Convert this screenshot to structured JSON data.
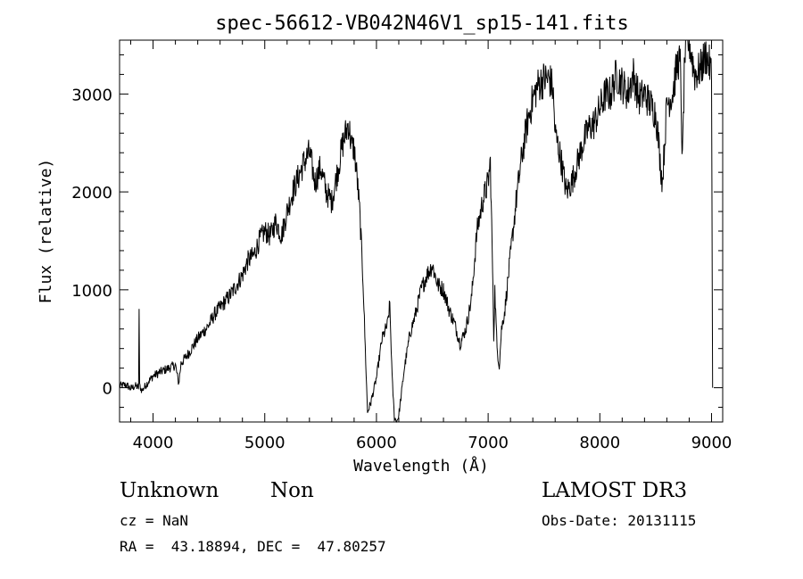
{
  "chart_data": {
    "type": "line",
    "title": "spec-56612-VB042N46V1_sp15-141.fits",
    "xlabel": "Wavelength (Å)",
    "ylabel": "Flux (relative)",
    "xlim": [
      3700,
      9100
    ],
    "ylim": [
      -350,
      3550
    ],
    "xticks": [
      4000,
      5000,
      6000,
      7000,
      8000,
      9000
    ],
    "yticks": [
      0,
      1000,
      2000,
      3000
    ],
    "xtick_labels": [
      "4000",
      "5000",
      "6000",
      "7000",
      "8000",
      "9000"
    ],
    "ytick_labels": [
      "0",
      "1000",
      "2000",
      "3000"
    ],
    "grid": false,
    "series": [
      {
        "name": "flux",
        "x": [
          3700,
          3760,
          3800,
          3840,
          3870,
          3875,
          3880,
          3900,
          3950,
          4000,
          4100,
          4200,
          4230,
          4250,
          4300,
          4400,
          4500,
          4550,
          4600,
          4700,
          4800,
          4850,
          4900,
          4950,
          5000,
          5050,
          5100,
          5150,
          5200,
          5250,
          5300,
          5350,
          5400,
          5450,
          5500,
          5550,
          5600,
          5650,
          5700,
          5750,
          5780,
          5800,
          5830,
          5850,
          5880,
          5900,
          5920,
          5950,
          6000,
          6050,
          6100,
          6120,
          6140,
          6160,
          6180,
          6200,
          6230,
          6250,
          6300,
          6350,
          6400,
          6450,
          6500,
          6550,
          6600,
          6650,
          6700,
          6750,
          6800,
          6850,
          6900,
          6950,
          7000,
          7020,
          7040,
          7050,
          7060,
          7080,
          7100,
          7120,
          7150,
          7200,
          7250,
          7300,
          7350,
          7400,
          7450,
          7500,
          7550,
          7580,
          7600,
          7620,
          7650,
          7700,
          7750,
          7800,
          7850,
          7900,
          7950,
          8000,
          8050,
          8100,
          8150,
          8200,
          8250,
          8300,
          8350,
          8400,
          8450,
          8500,
          8520,
          8540,
          8560,
          8600,
          8650,
          8700,
          8720,
          8740,
          8760,
          8800,
          8850,
          8900,
          8950,
          8980,
          9000,
          9010
        ],
        "y": [
          20,
          30,
          -10,
          20,
          0,
          800,
          20,
          -30,
          50,
          120,
          180,
          230,
          40,
          250,
          320,
          500,
          640,
          750,
          820,
          960,
          1150,
          1300,
          1350,
          1500,
          1600,
          1550,
          1700,
          1550,
          1800,
          2000,
          2150,
          2300,
          2400,
          2100,
          2250,
          2000,
          1900,
          2200,
          2500,
          2700,
          2450,
          2450,
          2100,
          1800,
          1100,
          400,
          -250,
          -150,
          100,
          500,
          650,
          850,
          100,
          -300,
          -350,
          -280,
          0,
          200,
          550,
          750,
          1000,
          1150,
          1250,
          1050,
          1000,
          800,
          650,
          450,
          600,
          900,
          1600,
          1900,
          2100,
          2300,
          1200,
          500,
          1000,
          400,
          220,
          600,
          800,
          1350,
          1900,
          2350,
          2700,
          2950,
          3100,
          3150,
          3150,
          3050,
          2600,
          2500,
          2350,
          2000,
          2100,
          2300,
          2500,
          2650,
          2700,
          2850,
          3000,
          3000,
          3200,
          3100,
          3000,
          3200,
          2950,
          3000,
          2900,
          2800,
          2600,
          2300,
          2100,
          2900,
          3000,
          3350,
          3300,
          2300,
          3400,
          3550,
          3200,
          3250,
          3400,
          3300,
          3200,
          0
        ]
      }
    ]
  },
  "info": {
    "object_class": "Unknown",
    "object_subclass": "Non",
    "survey": "LAMOST DR3",
    "redshift": "cz = NaN",
    "obs_date": "Obs-Date: 20131115",
    "coords": "RA =  43.18894, DEC =  47.80257"
  }
}
